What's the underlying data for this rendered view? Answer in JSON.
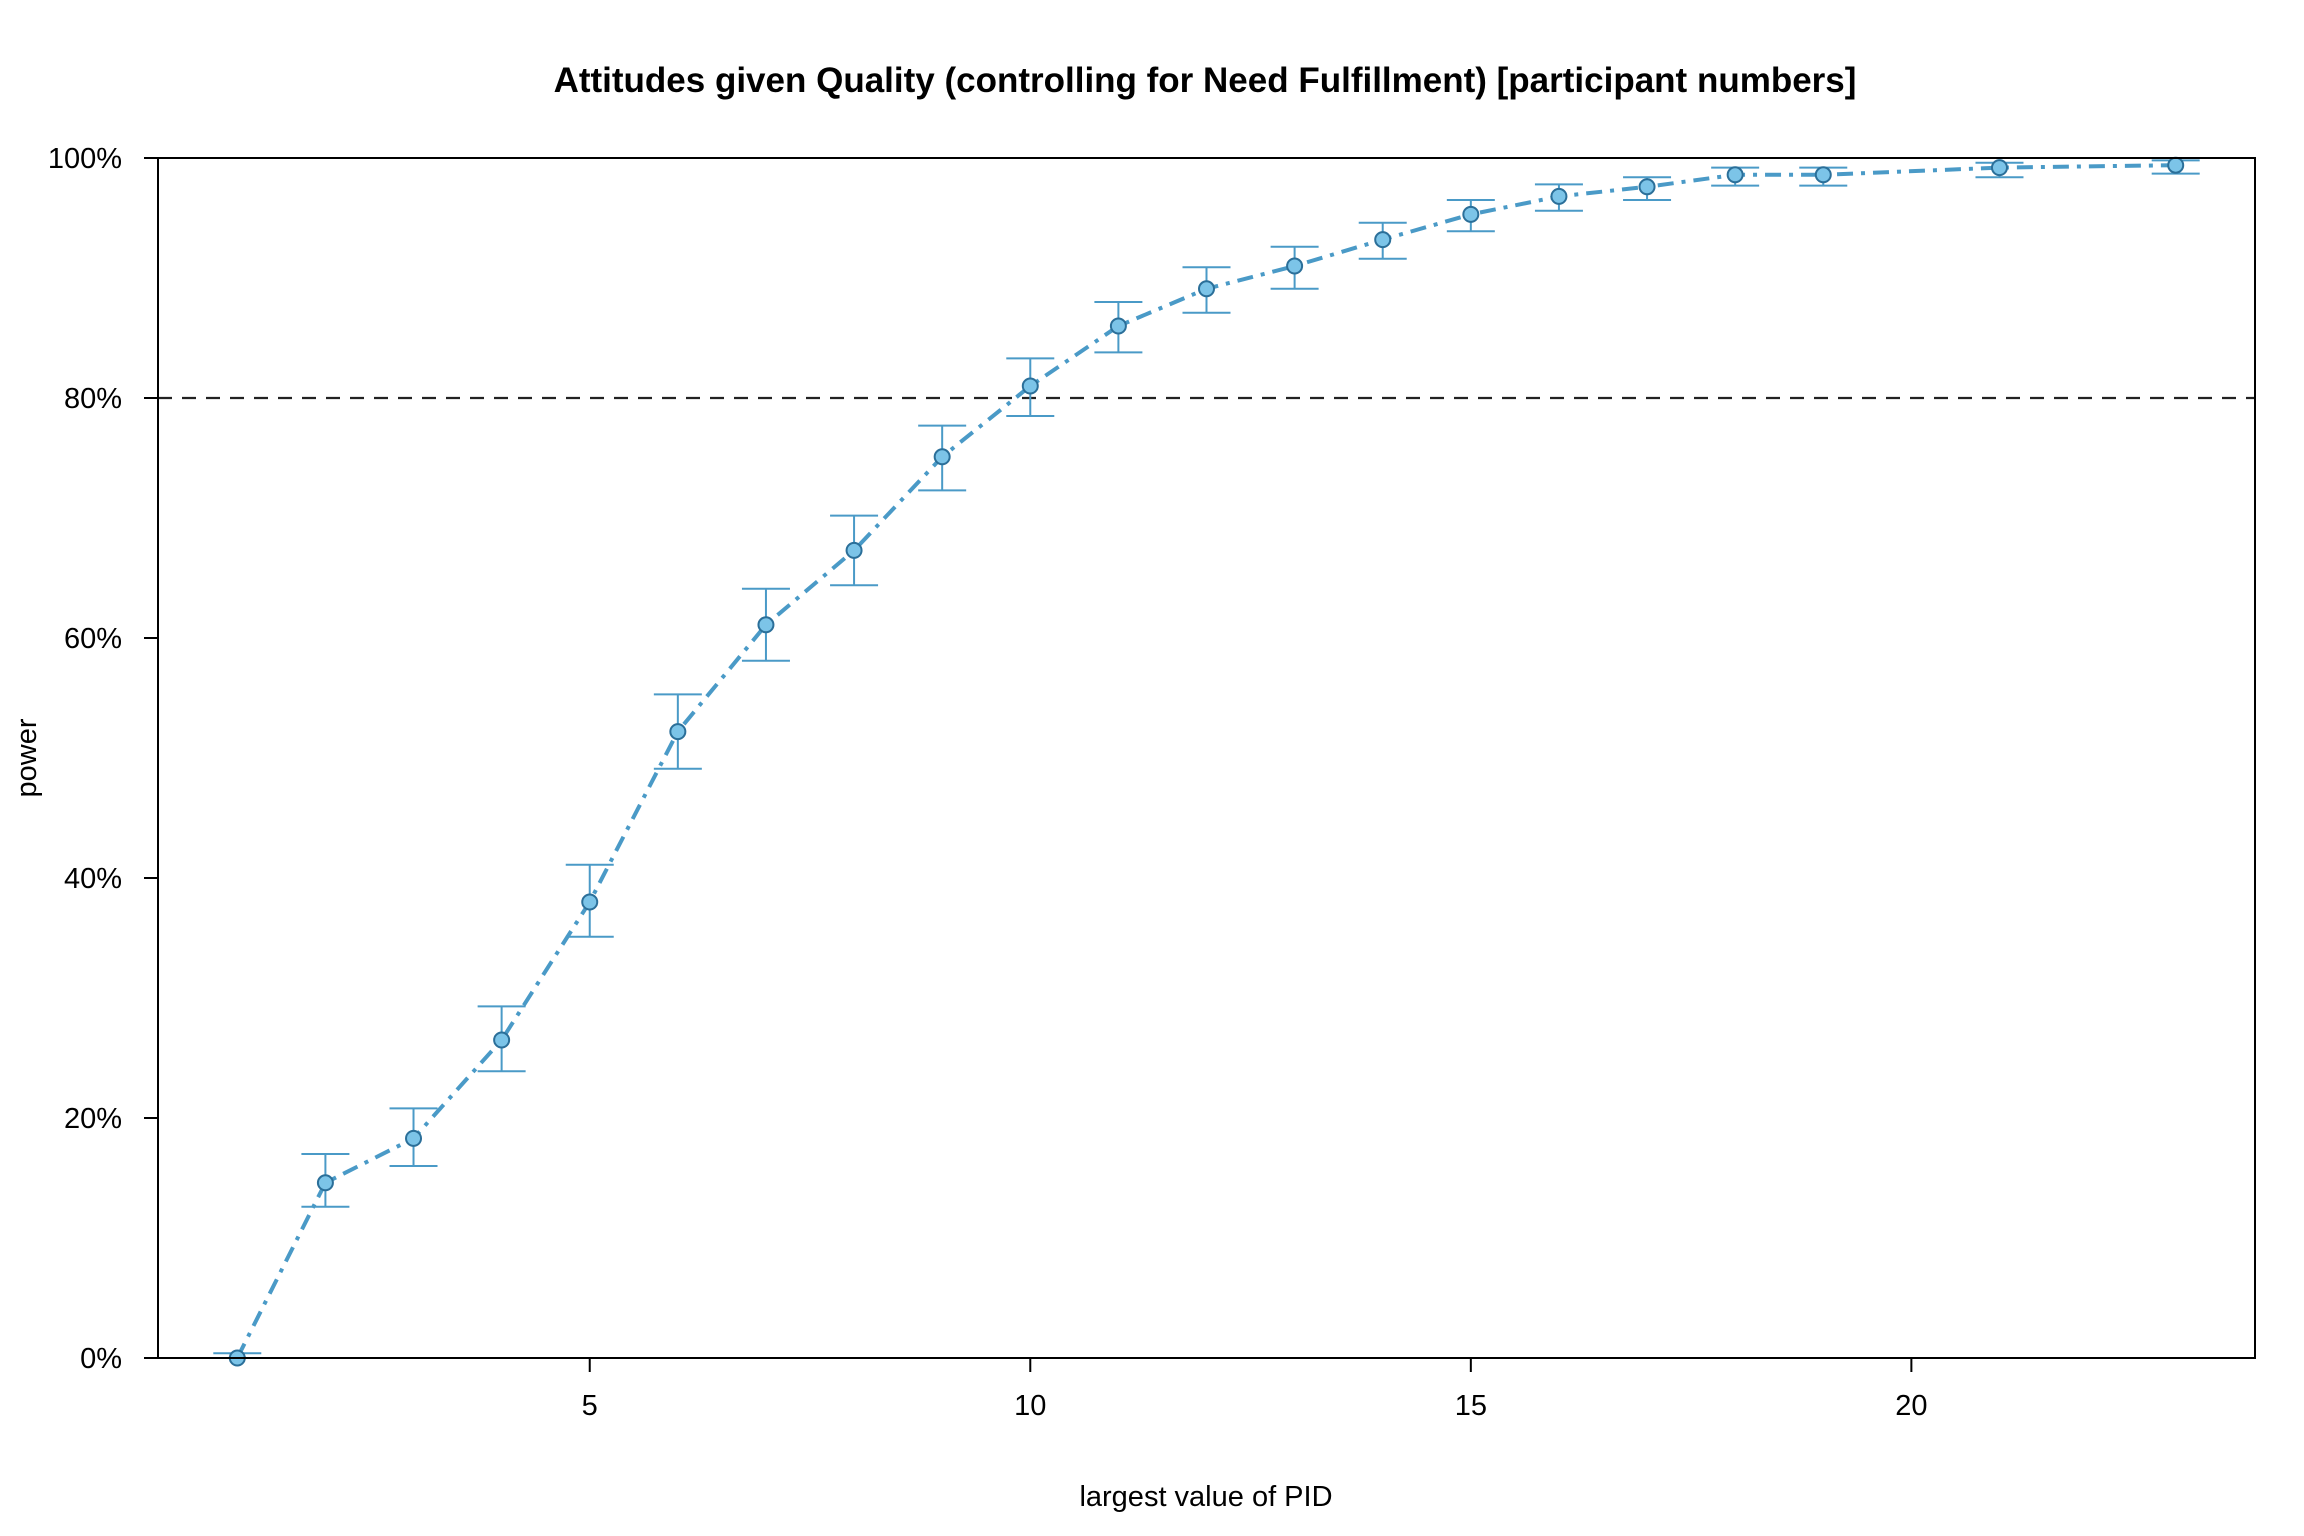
{
  "chart_data": {
    "type": "line",
    "title": "Attitudes given Quality (controlling for Need Fulfillment) [participant numbers]",
    "xlabel": "largest value of PID",
    "ylabel": "power",
    "x_ticks": [
      5,
      10,
      15,
      20
    ],
    "y_ticks": [
      "0%",
      "20%",
      "40%",
      "60%",
      "80%",
      "100%"
    ],
    "xlim": [
      0.1,
      23.9
    ],
    "ylim": [
      0,
      100
    ],
    "reference_line": {
      "y": 80,
      "style": "dashed",
      "color": "#222222"
    },
    "series": [
      {
        "color": "#4a9ac7",
        "marker_fill": "#7cc4e8",
        "marker_stroke": "#2b6f99",
        "line_style": "dot-dash",
        "points": [
          {
            "x": 1,
            "y": 0,
            "lo": 0,
            "hi": 0.4
          },
          {
            "x": 2,
            "y": 14.6,
            "lo": 12.6,
            "hi": 17.0
          },
          {
            "x": 3,
            "y": 18.3,
            "lo": 16.0,
            "hi": 20.8
          },
          {
            "x": 4,
            "y": 26.5,
            "lo": 23.9,
            "hi": 29.3
          },
          {
            "x": 5,
            "y": 38.0,
            "lo": 35.1,
            "hi": 41.1
          },
          {
            "x": 6,
            "y": 52.2,
            "lo": 49.1,
            "hi": 55.3
          },
          {
            "x": 7,
            "y": 61.1,
            "lo": 58.1,
            "hi": 64.1
          },
          {
            "x": 8,
            "y": 67.3,
            "lo": 64.4,
            "hi": 70.2
          },
          {
            "x": 9,
            "y": 75.1,
            "lo": 72.3,
            "hi": 77.7
          },
          {
            "x": 10,
            "y": 81.0,
            "lo": 78.5,
            "hi": 83.3
          },
          {
            "x": 11,
            "y": 86.0,
            "lo": 83.8,
            "hi": 88.0
          },
          {
            "x": 12,
            "y": 89.1,
            "lo": 87.1,
            "hi": 90.9
          },
          {
            "x": 13,
            "y": 91.0,
            "lo": 89.1,
            "hi": 92.6
          },
          {
            "x": 14,
            "y": 93.2,
            "lo": 91.6,
            "hi": 94.6
          },
          {
            "x": 15,
            "y": 95.3,
            "lo": 93.9,
            "hi": 96.5
          },
          {
            "x": 16,
            "y": 96.8,
            "lo": 95.6,
            "hi": 97.8
          },
          {
            "x": 17,
            "y": 97.6,
            "lo": 96.5,
            "hi": 98.4
          },
          {
            "x": 18,
            "y": 98.6,
            "lo": 97.7,
            "hi": 99.2
          },
          {
            "x": 19,
            "y": 98.6,
            "lo": 97.7,
            "hi": 99.2
          },
          {
            "x": 21,
            "y": 99.2,
            "lo": 98.4,
            "hi": 99.6
          },
          {
            "x": 23,
            "y": 99.4,
            "lo": 98.7,
            "hi": 99.8
          }
        ]
      }
    ]
  }
}
